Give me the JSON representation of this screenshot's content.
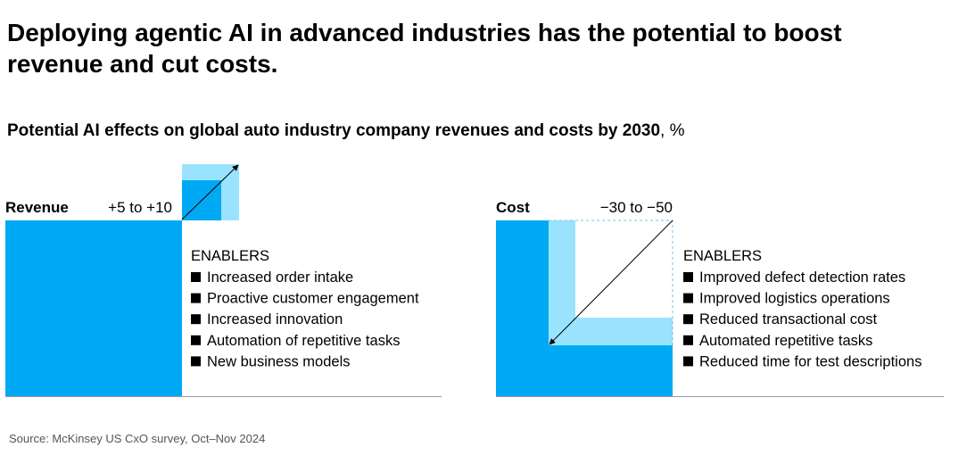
{
  "title": "Deploying agentic AI in advanced industries has the potential to boost revenue and cut costs.",
  "subtitle": {
    "main": "Potential AI effects on global auto industry company revenues and costs by 2030",
    "unit": ", %"
  },
  "panels": [
    {
      "label": "Revenue",
      "range": "+5 to +10",
      "enablers_heading": "ENABLERS",
      "enablers": [
        "Increased order intake",
        "Proactive customer engagement",
        "Increased innovation",
        "Automation of repetitive tasks",
        "New business models"
      ]
    },
    {
      "label": "Cost",
      "range": "−30 to −50",
      "enablers_heading": "ENABLERS",
      "enablers": [
        "Improved defect detection rates",
        "Improved logistics operations",
        "Reduced transactional cost",
        "Automated repetitive tasks",
        "Reduced time for test descriptions"
      ]
    }
  ],
  "source": "Source: McKinsey US CxO survey, Oct–Nov 2024"
}
